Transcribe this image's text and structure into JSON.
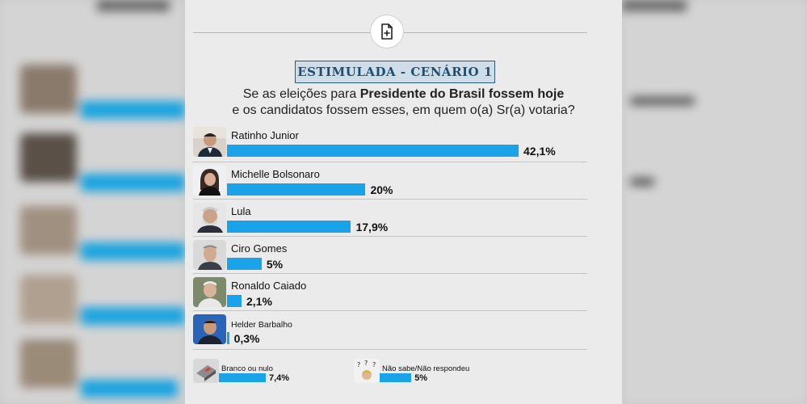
{
  "badge": "ESTIMULADA - CENÁRIO 1",
  "question": {
    "pre": "Se as eleições para ",
    "bold": "Presidente do Brasil fossem hoje",
    "line2": "e os candidatos fossem esses, em quem o(a) Sr(a) votaria?"
  },
  "chart_data": {
    "type": "bar",
    "orientation": "horizontal",
    "title": "ESTIMULADA - CENÁRIO 1",
    "categories": [
      "Ratinho Junior",
      "Michelle Bolsonaro",
      "Lula",
      "Ciro Gomes",
      "Ronaldo Caiado",
      "Helder Barbalho",
      "Branco ou nulo",
      "Não sabe/Não respondeu"
    ],
    "values": [
      42.1,
      20,
      17.9,
      5,
      2.1,
      0.3,
      7.4,
      5
    ],
    "labels": [
      "42,1%",
      "20%",
      "17,9%",
      "5%",
      "2,1%",
      "0,3%",
      "7,4%",
      "5%"
    ],
    "unit": "%"
  },
  "colors": {
    "bar": "#1aa3e8",
    "badge_text": "#1f4e6e",
    "badge_bg": "#cfdde8"
  },
  "icons": {
    "top": "document-plus-icon"
  }
}
